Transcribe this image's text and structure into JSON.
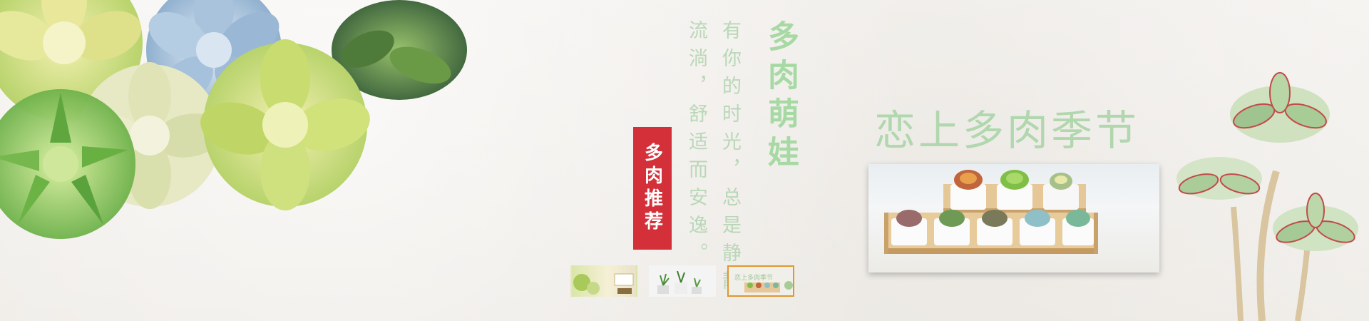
{
  "banner": {
    "poem_line_1": "流淌，舒适而安逸。",
    "poem_line_2": "有你的时光，总是静静",
    "vertical_title": "多肉萌娃",
    "red_tag": "多肉推荐",
    "headline": "恋上多肉季节"
  },
  "carousel": {
    "thumbnails": [
      {
        "name": "slide-1",
        "active": false
      },
      {
        "name": "slide-2",
        "active": false
      },
      {
        "name": "slide-3",
        "active": true
      }
    ],
    "slide_3_text": "恋上多肉季节"
  },
  "colors": {
    "accent_green": "#a7d9a4",
    "tag_red": "#d4303a",
    "active_border": "#e0972c"
  }
}
